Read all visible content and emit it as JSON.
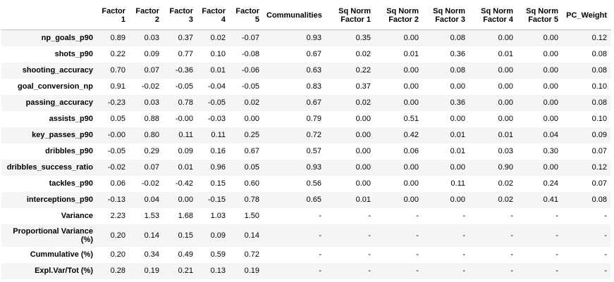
{
  "table": {
    "columns": [
      {
        "line1": "Factor",
        "line2": "1"
      },
      {
        "line1": "Factor",
        "line2": "2"
      },
      {
        "line1": "Factor",
        "line2": "3"
      },
      {
        "line1": "Factor",
        "line2": "4"
      },
      {
        "line1": "Factor",
        "line2": "5"
      },
      {
        "line1": "Communalities",
        "line2": ""
      },
      {
        "line1": "Sq Norm",
        "line2": "Factor 1"
      },
      {
        "line1": "Sq Norm",
        "line2": "Factor 2"
      },
      {
        "line1": "Sq Norm",
        "line2": "Factor 3"
      },
      {
        "line1": "Sq Norm",
        "line2": "Factor 4"
      },
      {
        "line1": "Sq Norm",
        "line2": "Factor 5"
      },
      {
        "line1": "PC_Weight",
        "line2": ""
      }
    ],
    "rows": [
      {
        "label": "np_goals_p90",
        "cells": [
          "0.89",
          "0.03",
          "0.37",
          "0.02",
          "-0.07",
          "0.93",
          "0.35",
          "0.00",
          "0.08",
          "0.00",
          "0.00",
          "0.12"
        ]
      },
      {
        "label": "shots_p90",
        "cells": [
          "0.22",
          "0.09",
          "0.77",
          "0.10",
          "-0.08",
          "0.67",
          "0.02",
          "0.01",
          "0.36",
          "0.01",
          "0.00",
          "0.08"
        ]
      },
      {
        "label": "shooting_accuracy",
        "cells": [
          "0.70",
          "0.07",
          "-0.36",
          "0.01",
          "-0.06",
          "0.63",
          "0.22",
          "0.00",
          "0.08",
          "0.00",
          "0.00",
          "0.08"
        ]
      },
      {
        "label": "goal_conversion_np",
        "cells": [
          "0.91",
          "-0.02",
          "-0.05",
          "-0.04",
          "-0.05",
          "0.83",
          "0.37",
          "0.00",
          "0.00",
          "0.00",
          "0.00",
          "0.10"
        ]
      },
      {
        "label": "passing_accuracy",
        "cells": [
          "-0.23",
          "0.03",
          "0.78",
          "-0.05",
          "0.02",
          "0.67",
          "0.02",
          "0.00",
          "0.36",
          "0.00",
          "0.00",
          "0.08"
        ]
      },
      {
        "label": "assists_p90",
        "cells": [
          "0.05",
          "0.88",
          "-0.00",
          "-0.03",
          "0.00",
          "0.79",
          "0.00",
          "0.51",
          "0.00",
          "0.00",
          "0.00",
          "0.10"
        ]
      },
      {
        "label": "key_passes_p90",
        "cells": [
          "-0.00",
          "0.80",
          "0.11",
          "0.11",
          "0.25",
          "0.72",
          "0.00",
          "0.42",
          "0.01",
          "0.01",
          "0.04",
          "0.09"
        ]
      },
      {
        "label": "dribbles_p90",
        "cells": [
          "-0.05",
          "0.29",
          "0.09",
          "0.16",
          "0.67",
          "0.57",
          "0.00",
          "0.06",
          "0.01",
          "0.03",
          "0.30",
          "0.07"
        ]
      },
      {
        "label": "dribbles_success_ratio",
        "cells": [
          "-0.02",
          "0.07",
          "0.01",
          "0.96",
          "0.05",
          "0.93",
          "0.00",
          "0.00",
          "0.00",
          "0.90",
          "0.00",
          "0.12"
        ]
      },
      {
        "label": "tackles_p90",
        "cells": [
          "0.06",
          "-0.02",
          "-0.42",
          "0.15",
          "0.60",
          "0.56",
          "0.00",
          "0.00",
          "0.11",
          "0.02",
          "0.24",
          "0.07"
        ]
      },
      {
        "label": "interceptions_p90",
        "cells": [
          "-0.13",
          "0.04",
          "0.00",
          "-0.15",
          "0.78",
          "0.65",
          "0.01",
          "0.00",
          "0.00",
          "0.02",
          "0.41",
          "0.08"
        ]
      },
      {
        "label": "Variance",
        "cells": [
          "2.23",
          "1.53",
          "1.68",
          "1.03",
          "1.50",
          "-",
          "-",
          "-",
          "-",
          "-",
          "-",
          "-"
        ]
      },
      {
        "label": "Proportional Variance (%)",
        "tall": true,
        "cells": [
          "0.20",
          "0.14",
          "0.15",
          "0.09",
          "0.14",
          "-",
          "-",
          "-",
          "-",
          "-",
          "-",
          "-"
        ]
      },
      {
        "label": "Cummulative (%)",
        "cells": [
          "0.20",
          "0.34",
          "0.49",
          "0.59",
          "0.72",
          "-",
          "-",
          "-",
          "-",
          "-",
          "-",
          "-"
        ]
      },
      {
        "label": "Expl.Var/Tot (%)",
        "cells": [
          "0.28",
          "0.19",
          "0.21",
          "0.13",
          "0.19",
          "-",
          "-",
          "-",
          "-",
          "-",
          "-",
          "-"
        ]
      }
    ]
  }
}
